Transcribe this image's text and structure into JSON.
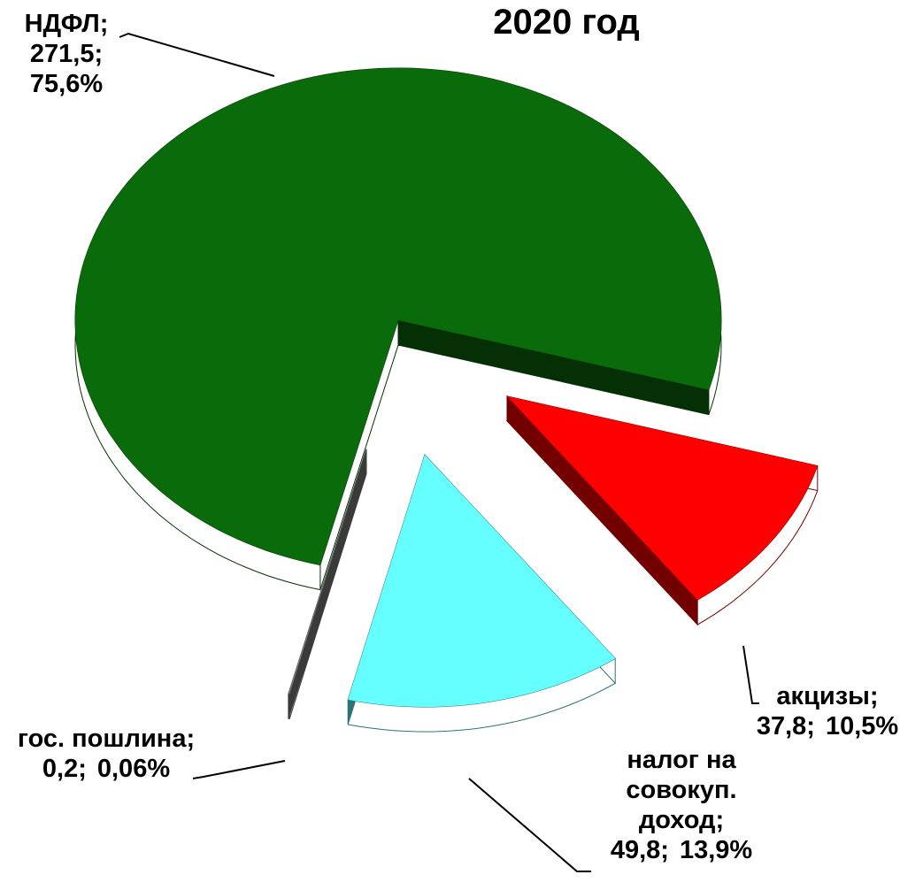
{
  "chart_data": {
    "type": "pie",
    "title": "2020 год",
    "categories": [
      "НДФЛ;",
      "акцизы;",
      "налог на совокуп. доход;",
      "гос. пошлина;"
    ],
    "values": [
      271.5,
      37.8,
      49.8,
      0.2
    ],
    "value_labels": [
      "271,5;",
      "37,8;",
      "49,8;",
      "0,2;"
    ],
    "percents": [
      75.6,
      10.5,
      13.9,
      0.06
    ],
    "percent_labels": [
      "75,6%",
      "10,5%",
      "13,9%",
      "0,06%"
    ],
    "colors": [
      "#0a6b0a",
      "#ff0000",
      "#66ffff",
      "#808080"
    ]
  }
}
